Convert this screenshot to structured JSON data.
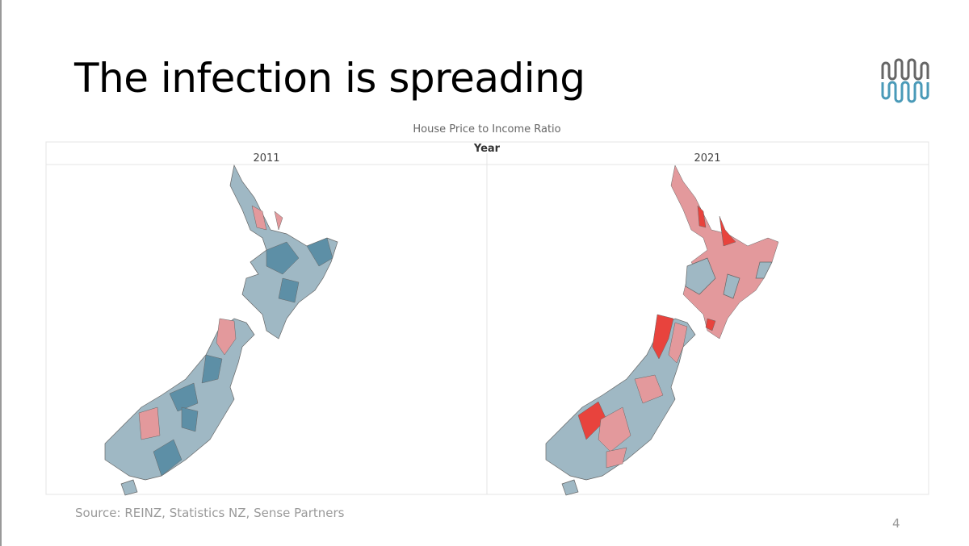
{
  "slide": {
    "title": "The infection is spreading",
    "page_number": "4"
  },
  "map": {
    "title": "House Price to Income Ratio",
    "facet_label": "Year",
    "panels": [
      "2011",
      "2021"
    ]
  },
  "source": "Source: REINZ, Statistics NZ, Sense Partners"
}
